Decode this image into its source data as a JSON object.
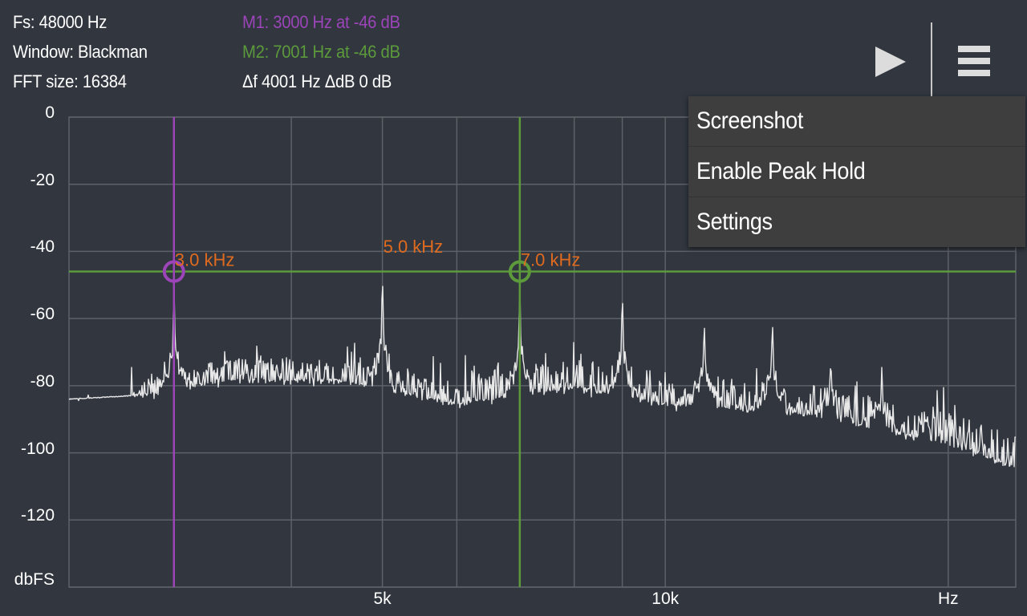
{
  "info": {
    "sample_rate": "Fs: 48000 Hz",
    "window": "Window: Blackman",
    "fft_size": "FFT size: 16384",
    "marker1": "M1: 3000 Hz at -46 dB",
    "marker2": "M2: 7001 Hz at -46 dB",
    "delta": "Δf 4001 Hz ΔdB 0 dB"
  },
  "toolbar": {
    "play_icon": "play-icon",
    "menu_icon": "hamburger-menu-icon"
  },
  "menu": {
    "items": [
      {
        "label": "Screenshot"
      },
      {
        "label": "Enable Peak Hold"
      },
      {
        "label": "Settings"
      }
    ]
  },
  "axes": {
    "y_unit": "dbFS",
    "x_unit": "Hz",
    "y_ticks": [
      "0",
      "-20",
      "-40",
      "-60",
      "-80",
      "-100",
      "-120"
    ],
    "x_ticks": [
      "5k",
      "10k"
    ]
  },
  "colors": {
    "background": "#31363f",
    "grid": "#5d6168",
    "trace": "#e8e8e8",
    "marker1": "#9b45b8",
    "marker2": "#5c9a3c",
    "peak_label": "#e06b1f",
    "menu_bg": "#3e3e3e"
  },
  "chart_data": {
    "type": "line",
    "title": "",
    "xlabel": "Hz",
    "ylabel": "dbFS",
    "x_scale": "log",
    "xlim": [
      2320,
      23600
    ],
    "ylim": [
      -140,
      0
    ],
    "x_gridlines": [
      3000,
      4000,
      5000,
      6000,
      7000,
      8000,
      9000,
      10000,
      20000
    ],
    "y_gridlines": [
      0,
      -20,
      -40,
      -60,
      -80,
      -100,
      -120,
      -140
    ],
    "x_tick_labels": [
      {
        "value": 5000,
        "label": "5k"
      },
      {
        "value": 10000,
        "label": "10k"
      }
    ],
    "y_tick_labels": [
      0,
      -20,
      -40,
      -60,
      -80,
      -100,
      -120
    ],
    "peaks": [
      {
        "freq": 3000,
        "db": -46,
        "label": "3.0  kHz"
      },
      {
        "freq": 5000,
        "db": -42,
        "label": "5.0  kHz"
      },
      {
        "freq": 7000,
        "db": -46,
        "label": "7.0  kHz"
      },
      {
        "freq": 9000,
        "db": -48
      },
      {
        "freq": 11000,
        "db": -58
      },
      {
        "freq": 13000,
        "db": -57
      },
      {
        "freq": 15000,
        "db": -70
      },
      {
        "freq": 17000,
        "db": -73
      },
      {
        "freq": 19000,
        "db": -88
      },
      {
        "freq": 21000,
        "db": -92
      }
    ],
    "noise_floor": [
      {
        "freq": 2320,
        "db": -84
      },
      {
        "freq": 2700,
        "db": -83
      },
      {
        "freq": 3400,
        "db": -78
      },
      {
        "freq": 4500,
        "db": -78
      },
      {
        "freq": 6000,
        "db": -85
      },
      {
        "freq": 8000,
        "db": -80
      },
      {
        "freq": 10000,
        "db": -85
      },
      {
        "freq": 14000,
        "db": -88
      },
      {
        "freq": 20000,
        "db": -97
      },
      {
        "freq": 23600,
        "db": -104
      }
    ],
    "markers": [
      {
        "name": "M1",
        "freq": 3000,
        "db": -46,
        "color": "#9b45b8"
      },
      {
        "name": "M2",
        "freq": 7001,
        "db": -46,
        "color": "#5c9a3c"
      }
    ],
    "legend": "none"
  }
}
